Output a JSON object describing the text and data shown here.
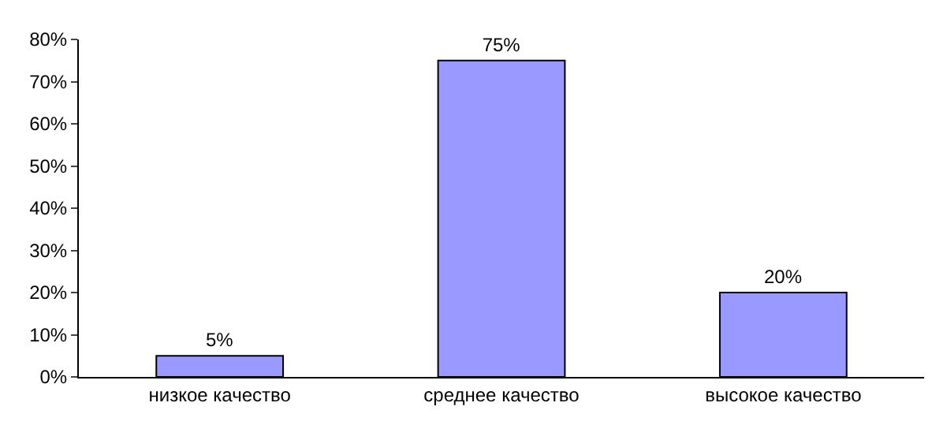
{
  "chart_data": {
    "type": "bar",
    "categories": [
      "низкое качество",
      "среднее качество",
      "высокое качество"
    ],
    "values": [
      5,
      75,
      20
    ],
    "value_labels": [
      "5%",
      "75%",
      "20%"
    ],
    "color": "#9999ff",
    "ylim": [
      0,
      80
    ],
    "yticks": [
      {
        "value": 0,
        "label": "0%"
      },
      {
        "value": 10,
        "label": "10%"
      },
      {
        "value": 20,
        "label": "20%"
      },
      {
        "value": 30,
        "label": "30%"
      },
      {
        "value": 40,
        "label": "40%"
      },
      {
        "value": 50,
        "label": "50%"
      },
      {
        "value": 60,
        "label": "60%"
      },
      {
        "value": 70,
        "label": "70%"
      },
      {
        "value": 80,
        "label": "80%"
      }
    ],
    "legend": false
  }
}
